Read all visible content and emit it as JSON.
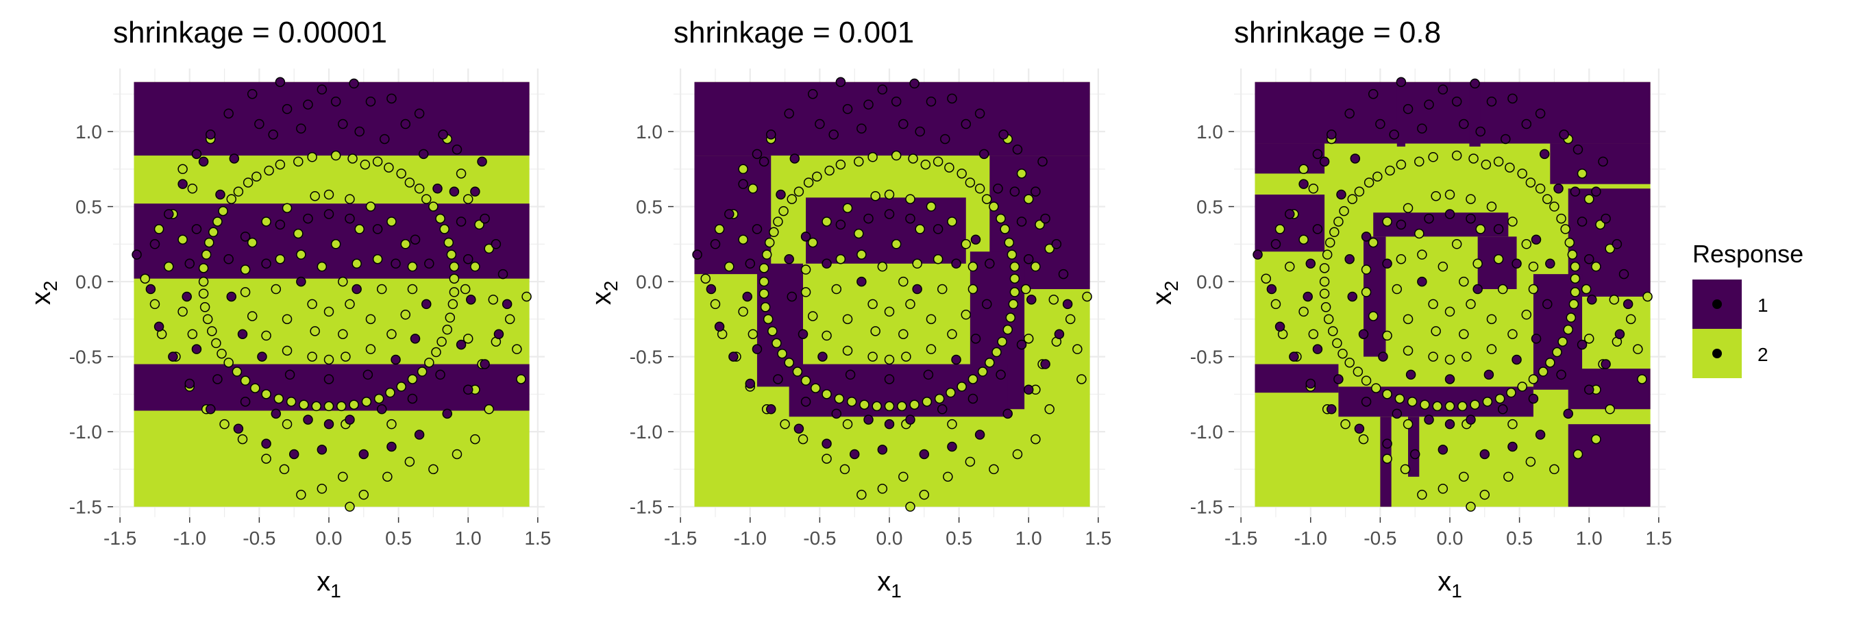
{
  "chart_data": [
    {
      "type": "scatter",
      "title": "shrinkage = 0.00001",
      "xlabel": "x",
      "xlabel_sub": "1",
      "ylabel": "x",
      "ylabel_sub": "2",
      "xlim": [
        -1.55,
        1.55
      ],
      "ylim": [
        -1.57,
        1.42
      ],
      "xticks": [
        "-1.5",
        "-1.0",
        "-0.5",
        "0.0",
        "0.5",
        "1.0",
        "1.5"
      ],
      "yticks": [
        "-1.5",
        "-1.0",
        "-0.5",
        "0.0",
        "0.5",
        "1.0"
      ],
      "region_extent": {
        "x": [
          -1.4,
          1.44
        ],
        "y": [
          -1.5,
          1.33
        ]
      },
      "background_class": "2",
      "regions_class1": [
        {
          "x0": -1.4,
          "x1": 1.44,
          "y0": 0.84,
          "y1": 1.33
        },
        {
          "x0": -1.4,
          "x1": 1.44,
          "y0": 0.02,
          "y1": 0.52
        },
        {
          "x0": -1.4,
          "x1": 1.44,
          "y0": -0.86,
          "y1": -0.55
        }
      ]
    },
    {
      "type": "scatter",
      "title": "shrinkage = 0.001",
      "xlabel": "x",
      "xlabel_sub": "1",
      "ylabel": "x",
      "ylabel_sub": "2",
      "xlim": [
        -1.55,
        1.55
      ],
      "ylim": [
        -1.57,
        1.42
      ],
      "xticks": [
        "-1.5",
        "-1.0",
        "-0.5",
        "0.0",
        "0.5",
        "1.0",
        "1.5"
      ],
      "yticks": [
        "-1.5",
        "-1.0",
        "-0.5",
        "0.0",
        "0.5",
        "1.0"
      ],
      "region_extent": {
        "x": [
          -1.4,
          1.44
        ],
        "y": [
          -1.5,
          1.33
        ]
      },
      "background_class": "2",
      "regions_class1": [
        {
          "x0": -1.4,
          "x1": 1.44,
          "y0": 0.84,
          "y1": 1.33
        },
        {
          "x0": -1.4,
          "x1": -0.85,
          "y0": 0.05,
          "y1": 0.84
        },
        {
          "x0": 0.72,
          "x1": 1.44,
          "y0": -0.05,
          "y1": 0.84
        },
        {
          "x0": -0.6,
          "x1": 0.55,
          "y0": 0.12,
          "y1": 0.56
        },
        {
          "x0": -0.95,
          "x1": -0.62,
          "y0": -0.7,
          "y1": 0.12
        },
        {
          "x0": 0.58,
          "x1": 0.97,
          "y0": -0.85,
          "y1": 0.2
        },
        {
          "x0": -0.72,
          "x1": 0.85,
          "y0": -0.9,
          "y1": -0.55
        }
      ]
    },
    {
      "type": "scatter",
      "title": "shrinkage = 0.8",
      "xlabel": "x",
      "xlabel_sub": "1",
      "ylabel": "x",
      "ylabel_sub": "2",
      "xlim": [
        -1.55,
        1.55
      ],
      "ylim": [
        -1.57,
        1.42
      ],
      "xticks": [
        "-1.5",
        "-1.0",
        "-0.5",
        "0.0",
        "0.5",
        "1.0",
        "1.5"
      ],
      "yticks": [
        "-1.5",
        "-1.0",
        "-0.5",
        "0.0",
        "0.5",
        "1.0"
      ],
      "region_extent": {
        "x": [
          -1.4,
          1.44
        ],
        "y": [
          -1.5,
          1.33
        ]
      },
      "background_class": "2",
      "regions_class1": [
        {
          "x0": -1.4,
          "x1": 1.44,
          "y0": 0.92,
          "y1": 1.33
        },
        {
          "x0": -1.4,
          "x1": -0.9,
          "y0": 0.72,
          "y1": 0.92
        },
        {
          "x0": 0.72,
          "x1": 1.44,
          "y0": 0.65,
          "y1": 0.92
        },
        {
          "x0": -1.4,
          "x1": -0.9,
          "y0": 0.2,
          "y1": 0.58
        },
        {
          "x0": 0.85,
          "x1": 1.44,
          "y0": -0.1,
          "y1": 0.62
        },
        {
          "x0": -0.55,
          "x1": 0.42,
          "y0": 0.3,
          "y1": 0.46
        },
        {
          "x0": -0.62,
          "x1": -0.46,
          "y0": -0.5,
          "y1": 0.3
        },
        {
          "x0": 0.2,
          "x1": 0.48,
          "y0": -0.05,
          "y1": 0.3
        },
        {
          "x0": 0.6,
          "x1": 0.95,
          "y0": -0.72,
          "y1": 0.05
        },
        {
          "x0": -1.4,
          "x1": -0.8,
          "y0": -0.74,
          "y1": -0.55
        },
        {
          "x0": -0.8,
          "x1": 0.6,
          "y0": -0.9,
          "y1": -0.7
        },
        {
          "x0": 0.85,
          "x1": 1.44,
          "y0": -1.5,
          "y1": -0.95
        },
        {
          "x0": 0.85,
          "x1": 1.44,
          "y0": -0.85,
          "y1": -0.58
        },
        {
          "x0": -0.5,
          "x1": -0.42,
          "y0": -1.5,
          "y1": -0.9
        },
        {
          "x0": -0.3,
          "x1": -0.22,
          "y0": -1.3,
          "y1": -0.9
        },
        {
          "x0": -0.38,
          "x1": -0.32,
          "y0": 0.9,
          "y1": 1.33
        },
        {
          "x0": 0.14,
          "x1": 0.22,
          "y0": 0.9,
          "y1": 1.33
        }
      ]
    }
  ],
  "legend": {
    "title": "Response",
    "items": [
      {
        "label": "1",
        "fill": "#440154"
      },
      {
        "label": "2",
        "fill": "#bbdf27"
      }
    ]
  },
  "colors": {
    "class1": "#440154",
    "class2": "#bbdf27",
    "grid": "#ebebeb"
  },
  "points": {
    "class2": [
      [
        0.17,
        0.82
      ],
      [
        -0.12,
        0.83
      ],
      [
        0.35,
        0.8
      ],
      [
        -0.35,
        0.78
      ],
      [
        0.52,
        0.72
      ],
      [
        -0.52,
        0.7
      ],
      [
        0.65,
        0.62
      ],
      [
        -0.65,
        0.6
      ],
      [
        0.75,
        0.5
      ],
      [
        -0.76,
        0.47
      ],
      [
        0.83,
        0.35
      ],
      [
        -0.83,
        0.33
      ],
      [
        0.88,
        0.18
      ],
      [
        -0.88,
        0.18
      ],
      [
        0.9,
        0.02
      ],
      [
        -0.9,
        0.0
      ],
      [
        0.89,
        -0.15
      ],
      [
        -0.89,
        -0.17
      ],
      [
        0.85,
        -0.32
      ],
      [
        -0.84,
        -0.33
      ],
      [
        0.77,
        -0.47
      ],
      [
        -0.77,
        -0.48
      ],
      [
        0.67,
        -0.6
      ],
      [
        -0.66,
        -0.6
      ],
      [
        0.52,
        -0.7
      ],
      [
        -0.53,
        -0.71
      ],
      [
        0.36,
        -0.78
      ],
      [
        -0.36,
        -0.78
      ],
      [
        0.18,
        -0.82
      ],
      [
        -0.18,
        -0.82
      ],
      [
        0.0,
        -0.83
      ],
      [
        0.05,
        0.84
      ],
      [
        -0.22,
        0.8
      ],
      [
        0.26,
        0.78
      ],
      [
        0.43,
        0.76
      ],
      [
        -0.43,
        0.74
      ],
      [
        0.58,
        0.66
      ],
      [
        -0.58,
        0.66
      ],
      [
        0.7,
        0.55
      ],
      [
        -0.7,
        0.55
      ],
      [
        0.8,
        0.42
      ],
      [
        -0.8,
        0.4
      ],
      [
        0.86,
        0.26
      ],
      [
        -0.86,
        0.26
      ],
      [
        0.9,
        0.1
      ],
      [
        -0.9,
        0.09
      ],
      [
        0.9,
        -0.07
      ],
      [
        -0.9,
        -0.08
      ],
      [
        0.87,
        -0.24
      ],
      [
        -0.87,
        -0.25
      ],
      [
        0.81,
        -0.4
      ],
      [
        -0.81,
        -0.41
      ],
      [
        0.72,
        -0.54
      ],
      [
        -0.72,
        -0.54
      ],
      [
        0.6,
        -0.65
      ],
      [
        -0.6,
        -0.66
      ],
      [
        0.44,
        -0.74
      ],
      [
        -0.45,
        -0.75
      ],
      [
        0.27,
        -0.8
      ],
      [
        -0.27,
        -0.8
      ],
      [
        0.09,
        -0.83
      ],
      [
        -0.09,
        -0.83
      ],
      [
        0.15,
        0.55
      ],
      [
        -0.1,
        0.57
      ],
      [
        0.3,
        0.5
      ],
      [
        -0.3,
        0.49
      ],
      [
        0.45,
        0.4
      ],
      [
        -0.45,
        0.4
      ],
      [
        0.55,
        0.25
      ],
      [
        -0.55,
        0.26
      ],
      [
        0.6,
        0.1
      ],
      [
        -0.6,
        0.08
      ],
      [
        0.6,
        -0.05
      ],
      [
        -0.6,
        -0.07
      ],
      [
        0.55,
        -0.22
      ],
      [
        -0.55,
        -0.23
      ],
      [
        0.45,
        -0.35
      ],
      [
        -0.45,
        -0.36
      ],
      [
        0.3,
        -0.45
      ],
      [
        -0.3,
        -0.46
      ],
      [
        0.12,
        -0.5
      ],
      [
        -0.12,
        -0.5
      ],
      [
        0.0,
        0.58
      ],
      [
        0.0,
        -0.52
      ],
      [
        0.22,
        0.35
      ],
      [
        -0.22,
        0.32
      ],
      [
        0.35,
        0.15
      ],
      [
        -0.35,
        0.15
      ],
      [
        0.38,
        -0.05
      ],
      [
        -0.38,
        -0.05
      ],
      [
        0.3,
        -0.25
      ],
      [
        -0.3,
        -0.25
      ],
      [
        0.1,
        -0.35
      ],
      [
        -0.1,
        -0.33
      ],
      [
        0.05,
        0.25
      ],
      [
        -0.05,
        0.1
      ],
      [
        0.1,
        0.0
      ],
      [
        -0.12,
        -0.15
      ],
      [
        0.15,
        -0.15
      ],
      [
        0.0,
        -0.2
      ],
      [
        0.2,
        0.12
      ],
      [
        -0.2,
        0.18
      ],
      [
        1.0,
        -0.38
      ],
      [
        1.05,
        -0.72
      ],
      [
        1.1,
        -0.55
      ],
      [
        1.2,
        -0.4
      ],
      [
        1.3,
        -0.25
      ],
      [
        1.35,
        -0.45
      ],
      [
        1.42,
        -0.1
      ],
      [
        1.38,
        -0.65
      ],
      [
        1.15,
        -0.85
      ],
      [
        1.05,
        -1.05
      ],
      [
        0.92,
        -1.15
      ],
      [
        0.75,
        -1.25
      ],
      [
        0.58,
        -1.2
      ],
      [
        0.42,
        -1.3
      ],
      [
        0.25,
        -1.42
      ],
      [
        0.1,
        -1.3
      ],
      [
        -0.05,
        -1.38
      ],
      [
        -0.2,
        -1.42
      ],
      [
        0.15,
        -1.5
      ],
      [
        -0.32,
        -1.25
      ],
      [
        -0.45,
        -1.18
      ],
      [
        -0.62,
        -1.05
      ],
      [
        -0.75,
        -0.95
      ],
      [
        -0.88,
        -0.85
      ],
      [
        -1.0,
        -0.7
      ],
      [
        -1.1,
        -0.5
      ],
      [
        -1.2,
        -0.35
      ],
      [
        -1.25,
        -0.15
      ],
      [
        -1.32,
        0.02
      ],
      [
        -0.98,
        -0.35
      ],
      [
        -1.05,
        -0.2
      ],
      [
        -1.15,
        0.1
      ],
      [
        -1.05,
        0.28
      ],
      [
        -1.12,
        0.45
      ],
      [
        -1.22,
        0.35
      ],
      [
        -0.98,
        0.62
      ],
      [
        -1.05,
        0.75
      ],
      [
        1.0,
        0.55
      ],
      [
        1.08,
        0.38
      ],
      [
        1.15,
        0.22
      ],
      [
        1.05,
        0.1
      ],
      [
        0.98,
        -0.05
      ],
      [
        1.18,
        -0.12
      ],
      [
        0.95,
        0.72
      ],
      [
        -0.85,
        0.95
      ],
      [
        0.85,
        0.95
      ],
      [
        0.12,
        -0.95
      ],
      [
        -0.3,
        -0.95
      ],
      [
        0.45,
        -0.95
      ]
    ],
    "class1": [
      [
        -0.35,
        1.33
      ],
      [
        0.18,
        1.32
      ],
      [
        -0.55,
        1.25
      ],
      [
        0.45,
        1.22
      ],
      [
        -0.72,
        1.12
      ],
      [
        0.65,
        1.12
      ],
      [
        -0.85,
        0.98
      ],
      [
        0.82,
        0.98
      ],
      [
        -0.15,
        1.18
      ],
      [
        0.05,
        1.2
      ],
      [
        -0.05,
        1.28
      ],
      [
        0.3,
        1.2
      ],
      [
        -0.3,
        1.15
      ],
      [
        0.55,
        1.05
      ],
      [
        -0.5,
        1.05
      ],
      [
        -0.95,
        0.85
      ],
      [
        0.92,
        0.88
      ],
      [
        -1.05,
        0.65
      ],
      [
        1.05,
        0.6
      ],
      [
        -1.15,
        0.45
      ],
      [
        1.12,
        0.42
      ],
      [
        -1.25,
        0.25
      ],
      [
        1.2,
        0.25
      ],
      [
        -1.38,
        0.18
      ],
      [
        1.25,
        0.05
      ],
      [
        -1.28,
        -0.05
      ],
      [
        1.28,
        -0.15
      ],
      [
        -1.22,
        -0.3
      ],
      [
        1.22,
        -0.35
      ],
      [
        -1.12,
        -0.5
      ],
      [
        1.12,
        -0.55
      ],
      [
        -1.0,
        -0.68
      ],
      [
        1.0,
        -0.72
      ],
      [
        -0.85,
        -0.85
      ],
      [
        0.85,
        -0.88
      ],
      [
        -0.65,
        -0.98
      ],
      [
        0.65,
        -1.02
      ],
      [
        -0.45,
        -1.08
      ],
      [
        0.45,
        -1.1
      ],
      [
        -0.25,
        -1.15
      ],
      [
        0.25,
        -1.15
      ],
      [
        -0.05,
        -1.12
      ],
      [
        0.0,
        -0.95
      ],
      [
        -0.2,
        0.0
      ],
      [
        0.2,
        -0.05
      ],
      [
        -0.45,
        0.12
      ],
      [
        0.48,
        0.12
      ],
      [
        -0.6,
        0.3
      ],
      [
        0.62,
        0.28
      ],
      [
        -0.72,
        0.15
      ],
      [
        0.72,
        0.12
      ],
      [
        -0.7,
        -0.1
      ],
      [
        0.7,
        -0.15
      ],
      [
        -0.62,
        -0.35
      ],
      [
        0.62,
        -0.38
      ],
      [
        -0.48,
        -0.5
      ],
      [
        0.48,
        -0.52
      ],
      [
        -0.28,
        -0.62
      ],
      [
        0.28,
        -0.62
      ],
      [
        0.0,
        -0.65
      ],
      [
        -0.15,
        0.42
      ],
      [
        0.15,
        0.42
      ],
      [
        -0.35,
        0.38
      ],
      [
        0.35,
        0.35
      ],
      [
        0.0,
        0.45
      ],
      [
        0.78,
        0.62
      ],
      [
        -0.78,
        0.58
      ],
      [
        0.95,
        0.4
      ],
      [
        -0.95,
        0.35
      ],
      [
        1.0,
        0.15
      ],
      [
        -1.0,
        0.12
      ],
      [
        1.02,
        -0.12
      ],
      [
        -1.02,
        -0.1
      ],
      [
        0.95,
        -0.42
      ],
      [
        -0.95,
        -0.45
      ],
      [
        0.8,
        -0.62
      ],
      [
        -0.8,
        -0.65
      ],
      [
        0.6,
        -0.78
      ],
      [
        -0.6,
        -0.8
      ],
      [
        0.38,
        -0.85
      ],
      [
        -0.38,
        -0.88
      ],
      [
        0.15,
        -0.92
      ],
      [
        -0.15,
        -0.92
      ],
      [
        0.9,
        0.6
      ],
      [
        -0.9,
        0.8
      ],
      [
        1.1,
        0.8
      ],
      [
        -0.68,
        0.82
      ],
      [
        0.68,
        0.85
      ],
      [
        0.4,
        0.95
      ],
      [
        -0.4,
        0.98
      ],
      [
        0.1,
        1.05
      ],
      [
        -0.2,
        1.02
      ],
      [
        0.22,
        1.0
      ]
    ]
  }
}
